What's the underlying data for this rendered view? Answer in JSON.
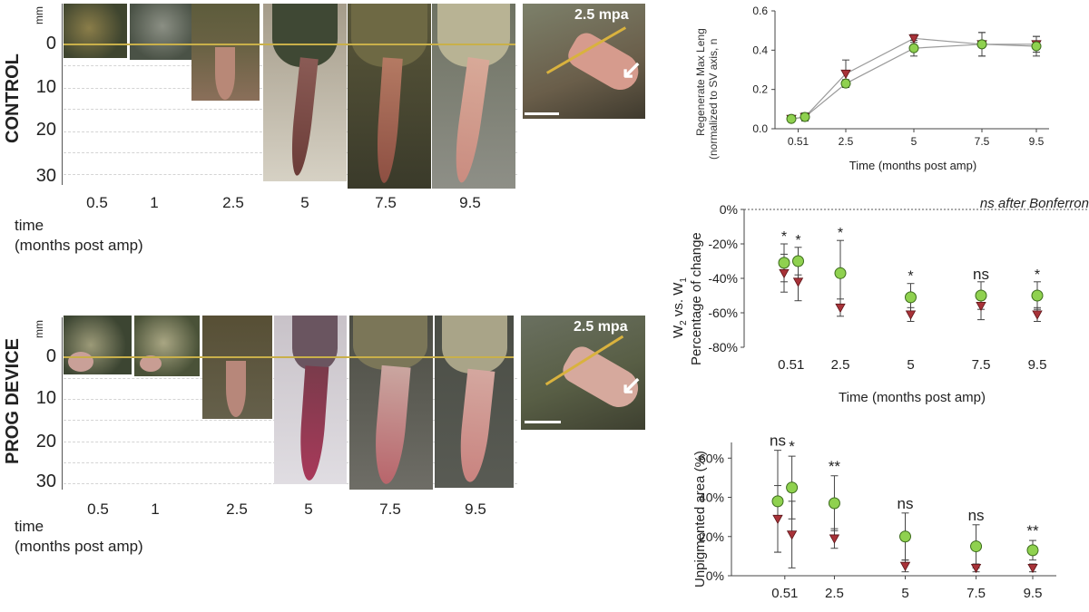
{
  "control": {
    "row_label": "CONTROL",
    "unit": "mm",
    "mm_ticks": [
      "0",
      "10",
      "20",
      "30"
    ],
    "time_labels": [
      "0.5",
      "1",
      "2.5",
      "5",
      "7.5",
      "9.5"
    ],
    "time_axis_label_1": "time",
    "time_axis_label_2": "(months post amp)",
    "inset_label": "2.5 mpa"
  },
  "prog": {
    "row_label": "PROG DEVICE",
    "unit": "mm",
    "mm_ticks": [
      "0",
      "10",
      "20",
      "30"
    ],
    "time_labels": [
      "0.5",
      "1",
      "2.5",
      "5",
      "7.5",
      "9.5"
    ],
    "time_axis_label_1": "time",
    "time_axis_label_2": "(months post amp)",
    "inset_label": "2.5 mpa"
  },
  "colors": {
    "prog_device_series": "#8fd14f",
    "control_series": "#a83238",
    "background_skin": "#4b5a3e",
    "regenerate_pink": "#d9958c"
  },
  "chart_data": [
    {
      "type": "line",
      "ylabel_1": "Regenerate Max Leng",
      "ylabel_2": "(normalized to SV axis, n",
      "xlabel": "Time (months post amp)",
      "x": [
        0.5,
        1,
        2.5,
        5,
        7.5,
        9.5
      ],
      "x_tick_labels": [
        "0.51",
        "2.5",
        "5",
        "7.5",
        "9.5"
      ],
      "y_tick_labels": [
        "0.0",
        "0.2",
        "0.4",
        "0.6"
      ],
      "ylim": [
        0,
        0.6
      ],
      "series": [
        {
          "values": [
            0.05,
            0.06,
            0.28,
            0.46,
            0.43,
            0.43
          ],
          "err": [
            0.01,
            0.02,
            0.07,
            0.02,
            0.06,
            0.04
          ]
        },
        {
          "values": [
            0.05,
            0.06,
            0.23,
            0.41,
            0.43,
            0.42
          ],
          "err": [
            0.01,
            0.02,
            0.02,
            0.04,
            0.06,
            0.05
          ]
        }
      ]
    },
    {
      "type": "scatter",
      "title": "ns after Bonferron",
      "ylabel_1": "W2 vs. W1",
      "ylabel_2": "Percentage of change",
      "xlabel": "Time (months post amp)",
      "x": [
        0.5,
        1,
        2.5,
        5,
        7.5,
        9.5
      ],
      "x_tick_labels": [
        "0.51",
        "2.5",
        "5",
        "7.5",
        "9.5"
      ],
      "y_tick_labels": [
        "0%",
        "-20%",
        "-40%",
        "-60%",
        "-80%"
      ],
      "ylim": [
        -80,
        0
      ],
      "annotations": [
        "*",
        "*",
        "*",
        "*",
        "ns",
        "*"
      ],
      "series": [
        {
          "values": [
            -37,
            -42,
            -57,
            -61,
            -56,
            -61
          ],
          "err": [
            11,
            11,
            5,
            4,
            8,
            4
          ]
        },
        {
          "values": [
            -31,
            -30,
            -37,
            -51,
            -50,
            -50
          ],
          "err": [
            11,
            8,
            19,
            8,
            8,
            8
          ]
        }
      ]
    },
    {
      "type": "scatter",
      "ylabel": "Unpigmented area (%)",
      "x": [
        0.5,
        1,
        2.5,
        5,
        7.5,
        9.5
      ],
      "x_tick_labels": [
        "0.51",
        "2.5",
        "5",
        "7.5",
        "9.5"
      ],
      "y_tick_labels": [
        "0%",
        "20%",
        "40%",
        "60%"
      ],
      "ylim": [
        0,
        68
      ],
      "annotations": [
        "ns",
        "*",
        "**",
        "ns",
        "ns",
        "**"
      ],
      "series": [
        {
          "values": [
            29,
            21,
            19,
            5,
            4,
            4
          ],
          "err": [
            17,
            17,
            5,
            3,
            2,
            2
          ]
        },
        {
          "values": [
            38,
            45,
            37,
            20,
            15,
            13
          ],
          "err": [
            26,
            16,
            14,
            12,
            11,
            5
          ]
        }
      ]
    }
  ]
}
